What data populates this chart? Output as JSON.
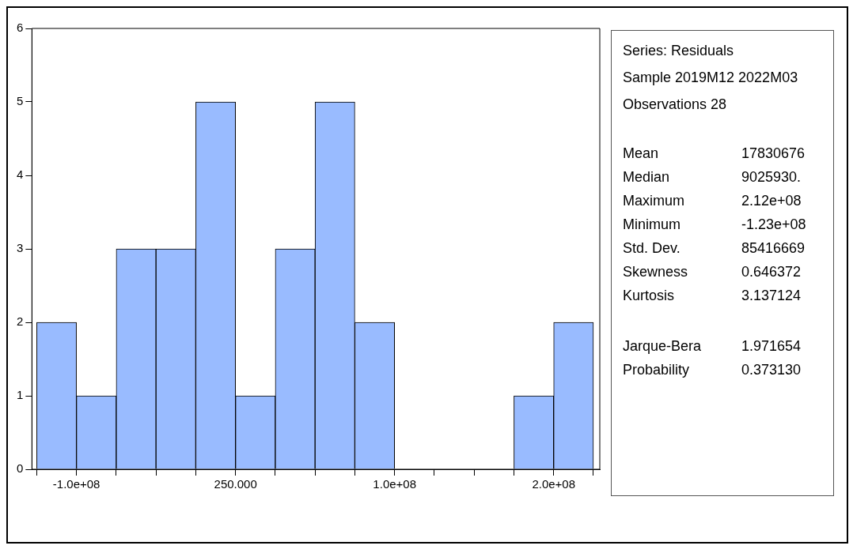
{
  "chart_data": {
    "type": "histogram",
    "bins": [
      -125000000,
      -100000000,
      -75000000,
      -50000000,
      -25000000,
      0,
      25000000,
      50000000,
      75000000,
      100000000,
      125000000,
      150000000,
      175000000,
      200000000,
      225000000
    ],
    "values": [
      2,
      1,
      3,
      3,
      5,
      1,
      3,
      5,
      2,
      0,
      0,
      0,
      1,
      2
    ],
    "color": "#99bbff",
    "xlim": [
      -128000000,
      229000000
    ],
    "xticks": [
      {
        "value": -125000000,
        "label": null
      },
      {
        "value": -100000000,
        "label": "-1.0e+08"
      },
      {
        "value": -75000000,
        "label": null
      },
      {
        "value": -50000000,
        "label": null
      },
      {
        "value": -25000000,
        "label": null
      },
      {
        "value": 250,
        "label": "250.000"
      },
      {
        "value": 25000000,
        "label": null
      },
      {
        "value": 50000000,
        "label": null
      },
      {
        "value": 75000000,
        "label": null
      },
      {
        "value": 100000000,
        "label": "1.0e+08"
      },
      {
        "value": 125000000,
        "label": null
      },
      {
        "value": 150000000,
        "label": null
      },
      {
        "value": 175000000,
        "label": null
      },
      {
        "value": 200000000,
        "label": "2.0e+08"
      },
      {
        "value": 225000000,
        "label": null
      }
    ],
    "ylim": [
      0,
      6
    ],
    "yticks": [
      0,
      1,
      2,
      3,
      4,
      5,
      6
    ],
    "grid": false,
    "legend": false,
    "annotations": [
      "Series: Residuals",
      "Sample 2019M12 2022M03",
      "Observations 28",
      "Mean",
      "17830676",
      "Median",
      "9025930.",
      "Maximum",
      "2.12e+08",
      "Minimum",
      "-1.23e+08",
      "Std. Dev.",
      "85416669",
      "Skewness",
      "0.646372",
      "Kurtosis",
      "3.137124",
      "Jarque-Bera",
      "1.971654",
      "Probability",
      "0.373130"
    ]
  }
}
